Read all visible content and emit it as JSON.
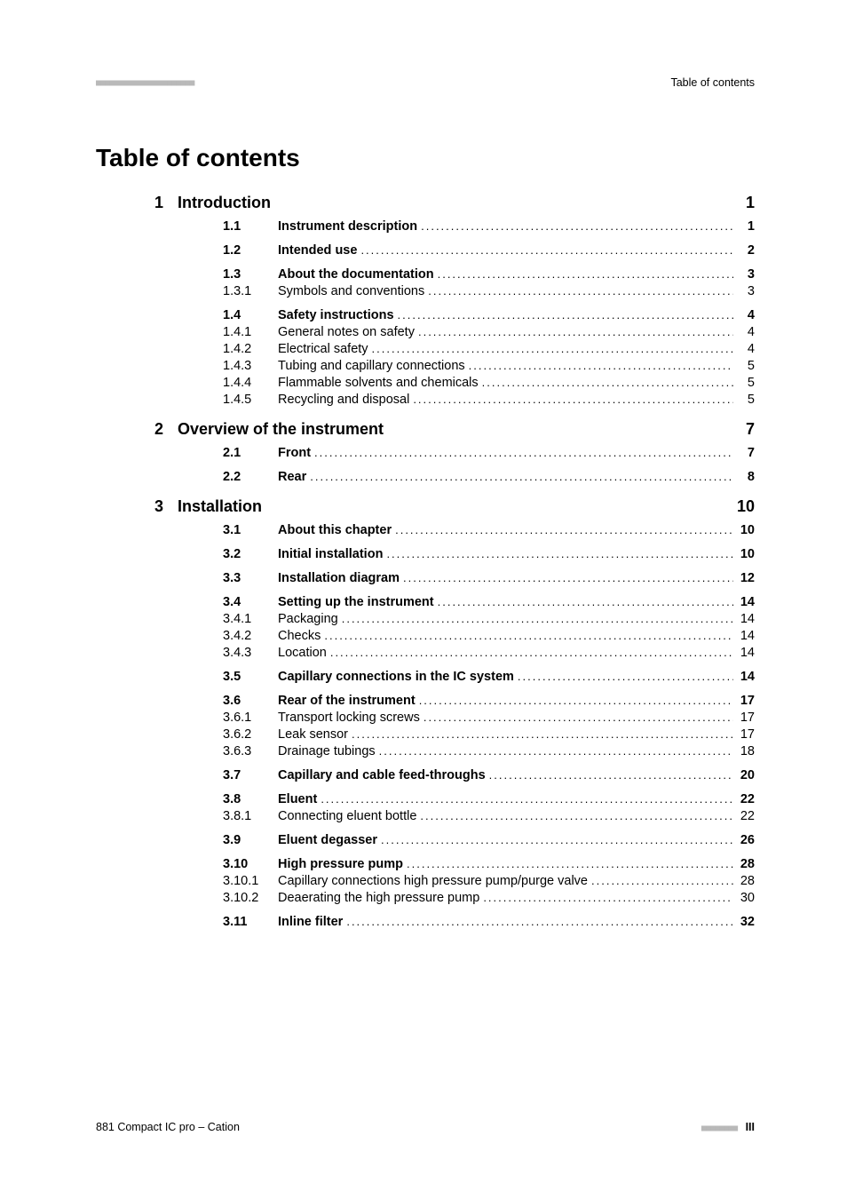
{
  "header": {
    "dashes": "■■■■■■■■■■■■■■■■■■■■■■",
    "label": "Table of contents"
  },
  "title": "Table of contents",
  "leader": ".......................................................................................................................................................................",
  "chapters": [
    {
      "num": "1",
      "title": "Introduction",
      "page": "1",
      "entries": [
        {
          "num": "1.1",
          "title": "Instrument description",
          "page": "1",
          "bold": true,
          "gapAfter": true
        },
        {
          "num": "1.2",
          "title": "Intended use",
          "page": "2",
          "bold": true,
          "gapAfter": true
        },
        {
          "num": "1.3",
          "title": "About the documentation",
          "page": "3",
          "bold": true
        },
        {
          "num": "1.3.1",
          "title": "Symbols and conventions",
          "page": "3",
          "bold": false,
          "gapAfter": true
        },
        {
          "num": "1.4",
          "title": "Safety instructions",
          "page": "4",
          "bold": true
        },
        {
          "num": "1.4.1",
          "title": "General notes on safety",
          "page": "4",
          "bold": false
        },
        {
          "num": "1.4.2",
          "title": "Electrical safety",
          "page": "4",
          "bold": false
        },
        {
          "num": "1.4.3",
          "title": "Tubing and capillary connections",
          "page": "5",
          "bold": false
        },
        {
          "num": "1.4.4",
          "title": "Flammable solvents and chemicals",
          "page": "5",
          "bold": false
        },
        {
          "num": "1.4.5",
          "title": "Recycling and disposal",
          "page": "5",
          "bold": false
        }
      ]
    },
    {
      "num": "2",
      "title": "Overview of the instrument",
      "page": "7",
      "entries": [
        {
          "num": "2.1",
          "title": "Front",
          "page": "7",
          "bold": true,
          "gapAfter": true
        },
        {
          "num": "2.2",
          "title": "Rear",
          "page": "8",
          "bold": true
        }
      ]
    },
    {
      "num": "3",
      "title": "Installation",
      "page": "10",
      "entries": [
        {
          "num": "3.1",
          "title": "About this chapter",
          "page": "10",
          "bold": true,
          "gapAfter": true
        },
        {
          "num": "3.2",
          "title": "Initial installation",
          "page": "10",
          "bold": true,
          "gapAfter": true
        },
        {
          "num": "3.3",
          "title": "Installation diagram",
          "page": "12",
          "bold": true,
          "gapAfter": true
        },
        {
          "num": "3.4",
          "title": "Setting up the instrument",
          "page": "14",
          "bold": true
        },
        {
          "num": "3.4.1",
          "title": "Packaging",
          "page": "14",
          "bold": false
        },
        {
          "num": "3.4.2",
          "title": "Checks",
          "page": "14",
          "bold": false
        },
        {
          "num": "3.4.3",
          "title": "Location",
          "page": "14",
          "bold": false,
          "gapAfter": true
        },
        {
          "num": "3.5",
          "title": "Capillary connections in the IC system",
          "page": "14",
          "bold": true,
          "gapAfter": true
        },
        {
          "num": "3.6",
          "title": "Rear of the instrument",
          "page": "17",
          "bold": true
        },
        {
          "num": "3.6.1",
          "title": "Transport locking screws",
          "page": "17",
          "bold": false
        },
        {
          "num": "3.6.2",
          "title": "Leak sensor",
          "page": "17",
          "bold": false
        },
        {
          "num": "3.6.3",
          "title": "Drainage tubings",
          "page": "18",
          "bold": false,
          "gapAfter": true
        },
        {
          "num": "3.7",
          "title": "Capillary and cable feed-throughs",
          "page": "20",
          "bold": true,
          "gapAfter": true
        },
        {
          "num": "3.8",
          "title": "Eluent",
          "page": "22",
          "bold": true
        },
        {
          "num": "3.8.1",
          "title": "Connecting eluent bottle",
          "page": "22",
          "bold": false,
          "gapAfter": true
        },
        {
          "num": "3.9",
          "title": "Eluent degasser",
          "page": "26",
          "bold": true,
          "gapAfter": true
        },
        {
          "num": "3.10",
          "title": "High pressure pump",
          "page": "28",
          "bold": true
        },
        {
          "num": "3.10.1",
          "title": "Capillary connections high pressure pump/purge valve",
          "page": "28",
          "bold": false
        },
        {
          "num": "3.10.2",
          "title": "Deaerating the high pressure pump",
          "page": "30",
          "bold": false,
          "gapAfter": true
        },
        {
          "num": "3.11",
          "title": "Inline filter",
          "page": "32",
          "bold": true
        }
      ]
    }
  ],
  "footer": {
    "left": "881 Compact IC pro – Cation",
    "dashes": "■■■■■■■■",
    "page": "III"
  }
}
